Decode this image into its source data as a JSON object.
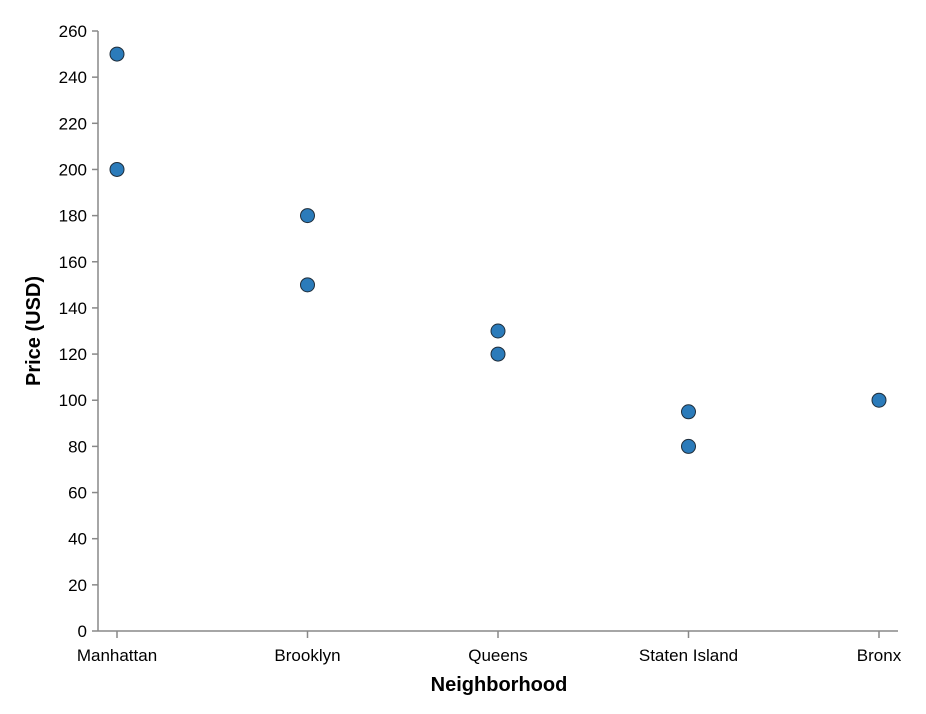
{
  "chart_data": {
    "type": "scatter",
    "title": "",
    "xlabel": "Neighborhood",
    "ylabel": "Price (USD)",
    "categories": [
      "Manhattan",
      "Brooklyn",
      "Queens",
      "Staten Island",
      "Bronx"
    ],
    "ylim": [
      0,
      260
    ],
    "yticks": [
      0,
      20,
      40,
      60,
      80,
      100,
      120,
      140,
      160,
      180,
      200,
      220,
      240,
      260
    ],
    "grid": false,
    "legend": "none",
    "point_color": "#2b7bba",
    "points": [
      {
        "category": "Manhattan",
        "value": 250
      },
      {
        "category": "Manhattan",
        "value": 200
      },
      {
        "category": "Brooklyn",
        "value": 180
      },
      {
        "category": "Brooklyn",
        "value": 150
      },
      {
        "category": "Queens",
        "value": 130
      },
      {
        "category": "Queens",
        "value": 120
      },
      {
        "category": "Staten Island",
        "value": 95
      },
      {
        "category": "Staten Island",
        "value": 80
      },
      {
        "category": "Bronx",
        "value": 100
      }
    ]
  }
}
